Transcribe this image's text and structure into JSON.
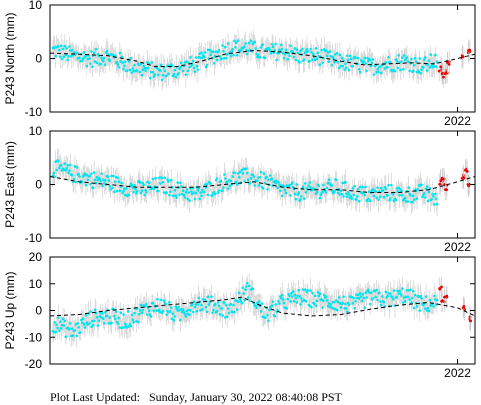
{
  "colors": {
    "data_point": "#00e5ee",
    "recent_point": "#ee0000",
    "error_bar": "#c8c8c8",
    "trend": "#000000",
    "frame": "#000000"
  },
  "footer": {
    "prefix": "Plot Last Updated:",
    "value": "Sunday, January 30, 2022 08:40:08 PST"
  },
  "chart_data": [
    {
      "type": "scatter",
      "ylabel": "P243 North (mm)",
      "ylim": [
        -10,
        10
      ],
      "yticks": [
        -10,
        0,
        10
      ],
      "xlim": [
        2015.0,
        2022.3
      ],
      "xtick_values": [
        2022.0
      ],
      "xtick_labels": [
        "2022"
      ],
      "grid": false,
      "series": [
        {
          "style": "dashed-line",
          "x": [
            2015.0,
            2015.5,
            2016.0,
            2016.5,
            2016.8,
            2017.2,
            2017.6,
            2018.0,
            2018.5,
            2019.0,
            2019.5,
            2020.0,
            2020.4,
            2020.8,
            2021.2,
            2021.6,
            2022.0,
            2022.3
          ],
          "y": [
            1.0,
            0.8,
            0.5,
            -0.5,
            -1.5,
            -1.5,
            -0.5,
            0.8,
            1.5,
            1.2,
            0.5,
            -0.5,
            -1.2,
            -1.0,
            -0.8,
            -1.0,
            0.0,
            0.8
          ]
        },
        {
          "style": "points",
          "x": [
            2015.1,
            2015.4,
            2015.7,
            2016.0,
            2016.3,
            2016.6,
            2016.9,
            2017.2,
            2017.5,
            2017.8,
            2018.1,
            2018.4,
            2018.7,
            2019.0,
            2019.3,
            2019.6,
            2019.9,
            2020.2,
            2020.5,
            2020.8,
            2021.1,
            2021.4,
            2021.6
          ],
          "y": [
            1.5,
            0.5,
            0.0,
            0.5,
            -1.0,
            -2.0,
            -2.5,
            -2.0,
            -1.0,
            0.5,
            2.0,
            2.0,
            1.0,
            1.5,
            0.5,
            0.5,
            -0.5,
            -1.0,
            -1.5,
            -1.0,
            -0.5,
            -1.5,
            -0.5
          ]
        },
        {
          "style": "recent-points",
          "x": [
            2021.7,
            2021.75,
            2021.8,
            2021.85,
            2022.1,
            2022.2
          ],
          "y": [
            -2.0,
            -3.0,
            -2.5,
            -1.0,
            0.5,
            1.5
          ]
        }
      ]
    },
    {
      "type": "scatter",
      "ylabel": "P243 East (mm)",
      "ylim": [
        -10,
        10
      ],
      "yticks": [
        -10,
        0,
        10
      ],
      "xlim": [
        2015.0,
        2022.3
      ],
      "xtick_values": [
        2022.0
      ],
      "xtick_labels": [
        "2022"
      ],
      "grid": false,
      "series": [
        {
          "style": "dashed-line",
          "x": [
            2015.0,
            2015.5,
            2016.0,
            2016.5,
            2017.0,
            2017.5,
            2018.0,
            2018.5,
            2019.0,
            2019.5,
            2020.0,
            2020.5,
            2021.0,
            2021.5,
            2022.0,
            2022.3
          ],
          "y": [
            1.5,
            0.5,
            0.0,
            -0.5,
            -0.5,
            -0.5,
            0.0,
            0.5,
            -0.5,
            -1.0,
            -1.0,
            -1.5,
            -1.5,
            -1.0,
            0.5,
            1.5
          ]
        },
        {
          "style": "points",
          "x": [
            2015.1,
            2015.4,
            2015.7,
            2016.0,
            2016.3,
            2016.6,
            2016.9,
            2017.2,
            2017.5,
            2017.8,
            2018.1,
            2018.4,
            2018.7,
            2019.0,
            2019.3,
            2019.6,
            2019.9,
            2020.2,
            2020.5,
            2020.8,
            2021.1,
            2021.4,
            2021.6
          ],
          "y": [
            3.0,
            2.0,
            1.0,
            0.5,
            -0.5,
            -1.0,
            0.0,
            -1.0,
            -2.0,
            -0.5,
            1.0,
            1.5,
            0.5,
            -1.0,
            -1.5,
            -1.0,
            -0.5,
            -1.5,
            -2.0,
            -1.5,
            -2.0,
            -1.5,
            -2.5
          ]
        },
        {
          "style": "recent-points",
          "x": [
            2021.7,
            2021.75,
            2021.8,
            2022.1,
            2022.15,
            2022.2
          ],
          "y": [
            0.5,
            1.0,
            -0.5,
            1.5,
            2.5,
            0.0
          ]
        }
      ]
    },
    {
      "type": "scatter",
      "ylabel": "P243 Up (mm)",
      "ylim": [
        -20,
        20
      ],
      "yticks": [
        -20,
        -10,
        0,
        10,
        20
      ],
      "xlim": [
        2015.0,
        2022.3
      ],
      "xtick_values": [
        2022.0
      ],
      "xtick_labels": [
        "2022"
      ],
      "grid": false,
      "series": [
        {
          "style": "dashed-line",
          "x": [
            2015.0,
            2015.5,
            2016.0,
            2016.5,
            2017.0,
            2017.5,
            2018.0,
            2018.3,
            2018.6,
            2019.0,
            2019.5,
            2020.0,
            2020.5,
            2021.0,
            2021.5,
            2022.0,
            2022.3
          ],
          "y": [
            -2.0,
            -1.5,
            0.0,
            1.0,
            2.0,
            3.0,
            4.0,
            5.0,
            2.0,
            -1.0,
            -2.0,
            -1.5,
            0.5,
            2.0,
            3.0,
            1.0,
            -2.0
          ]
        },
        {
          "style": "points",
          "x": [
            2015.1,
            2015.4,
            2015.7,
            2016.0,
            2016.3,
            2016.6,
            2016.9,
            2017.2,
            2017.5,
            2017.8,
            2018.1,
            2018.4,
            2018.7,
            2019.0,
            2019.3,
            2019.6,
            2019.9,
            2020.2,
            2020.5,
            2020.8,
            2021.1,
            2021.4,
            2021.6
          ],
          "y": [
            -5.0,
            -8.0,
            -3.0,
            -2.0,
            -4.0,
            0.0,
            2.0,
            -2.0,
            3.0,
            2.0,
            0.0,
            8.0,
            -2.0,
            3.0,
            5.0,
            4.0,
            3.0,
            2.0,
            5.0,
            4.0,
            6.0,
            2.0,
            3.0
          ]
        },
        {
          "style": "recent-points",
          "x": [
            2021.7,
            2021.75,
            2021.8,
            2022.1,
            2022.2
          ],
          "y": [
            8.0,
            3.0,
            5.0,
            1.0,
            -3.0
          ]
        }
      ]
    }
  ]
}
